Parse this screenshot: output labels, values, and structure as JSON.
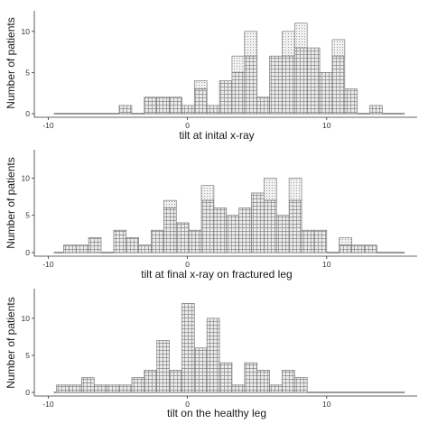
{
  "chart_data": [
    {
      "type": "histogram",
      "xlabel": "tilt at inital x-ray",
      "ylabel": "Number of patients",
      "xlim": [
        -11,
        16.5
      ],
      "ylim": [
        0,
        12.5
      ],
      "bin_width": 0.9,
      "xticks": [
        -10,
        0,
        10
      ],
      "xtick_labels": [
        "-10",
        "0",
        "10"
      ],
      "yticks": [
        0,
        5,
        10
      ],
      "ytick_labels": [
        "0",
        "5",
        "10"
      ],
      "bins": [
        {
          "x": -4.9,
          "count": 1,
          "split": 0
        },
        {
          "x": -3.1,
          "count": 2,
          "split": 0
        },
        {
          "x": -2.2,
          "count": 2,
          "split": 0
        },
        {
          "x": -1.3,
          "count": 2,
          "split": 0
        },
        {
          "x": -0.4,
          "count": 1,
          "split": 0
        },
        {
          "x": 0.5,
          "count": 4,
          "split": 3
        },
        {
          "x": 1.4,
          "count": 1,
          "split": 0
        },
        {
          "x": 2.3,
          "count": 4,
          "split": 0
        },
        {
          "x": 3.2,
          "count": 7,
          "split": 5
        },
        {
          "x": 4.1,
          "count": 10,
          "split": 7
        },
        {
          "x": 5.0,
          "count": 2,
          "split": 0
        },
        {
          "x": 5.9,
          "count": 7,
          "split": 0
        },
        {
          "x": 6.8,
          "count": 10,
          "split": 7
        },
        {
          "x": 7.7,
          "count": 11,
          "split": 8
        },
        {
          "x": 8.6,
          "count": 8,
          "split": 0
        },
        {
          "x": 9.5,
          "count": 5,
          "split": 0
        },
        {
          "x": 10.4,
          "count": 9,
          "split": 7
        },
        {
          "x": 11.3,
          "count": 3,
          "split": 0
        },
        {
          "x": 13.1,
          "count": 1,
          "split": 0
        }
      ]
    },
    {
      "type": "histogram",
      "xlabel": "tilt at final x-ray on fractured leg",
      "ylabel": "Number of patients",
      "xlim": [
        -11,
        16.5
      ],
      "ylim": [
        0,
        13.8
      ],
      "bin_width": 0.9,
      "xticks": [
        -10,
        0,
        10
      ],
      "xtick_labels": [
        "-10",
        "0",
        "10"
      ],
      "yticks": [
        0,
        5,
        10
      ],
      "ytick_labels": [
        "0",
        "5",
        "10"
      ],
      "bins": [
        {
          "x": -8.9,
          "count": 1,
          "split": 0
        },
        {
          "x": -8.0,
          "count": 1,
          "split": 0
        },
        {
          "x": -7.1,
          "count": 2,
          "split": 0
        },
        {
          "x": -5.3,
          "count": 3,
          "split": 0
        },
        {
          "x": -4.4,
          "count": 2,
          "split": 0
        },
        {
          "x": -3.5,
          "count": 1,
          "split": 0
        },
        {
          "x": -2.6,
          "count": 3,
          "split": 0
        },
        {
          "x": -1.7,
          "count": 7,
          "split": 6
        },
        {
          "x": -0.8,
          "count": 4,
          "split": 0
        },
        {
          "x": 0.1,
          "count": 3,
          "split": 0
        },
        {
          "x": 1.0,
          "count": 9,
          "split": 7
        },
        {
          "x": 1.9,
          "count": 6,
          "split": 0
        },
        {
          "x": 2.8,
          "count": 5,
          "split": 0
        },
        {
          "x": 3.7,
          "count": 6,
          "split": 0
        },
        {
          "x": 4.6,
          "count": 8,
          "split": 0
        },
        {
          "x": 5.5,
          "count": 10,
          "split": 7
        },
        {
          "x": 6.4,
          "count": 5,
          "split": 0
        },
        {
          "x": 7.3,
          "count": 10,
          "split": 7
        },
        {
          "x": 8.2,
          "count": 3,
          "split": 0
        },
        {
          "x": 9.1,
          "count": 3,
          "split": 0
        },
        {
          "x": 10.9,
          "count": 2,
          "split": 1
        },
        {
          "x": 11.8,
          "count": 1,
          "split": 0
        },
        {
          "x": 12.7,
          "count": 1,
          "split": 0
        }
      ]
    },
    {
      "type": "histogram",
      "xlabel": "tilt on the healthy leg",
      "ylabel": "Number of patients",
      "xlim": [
        -11,
        16.5
      ],
      "ylim": [
        0,
        14
      ],
      "bin_width": 0.9,
      "xticks": [
        -10,
        0,
        10
      ],
      "xtick_labels": [
        "-10",
        "0",
        "10"
      ],
      "yticks": [
        0,
        5,
        10
      ],
      "ytick_labels": [
        "0",
        "5",
        "10"
      ],
      "bins": [
        {
          "x": -9.4,
          "count": 1,
          "split": 0
        },
        {
          "x": -8.5,
          "count": 1,
          "split": 0
        },
        {
          "x": -7.6,
          "count": 2,
          "split": 0
        },
        {
          "x": -6.7,
          "count": 1,
          "split": 0
        },
        {
          "x": -5.8,
          "count": 1,
          "split": 0
        },
        {
          "x": -4.9,
          "count": 1,
          "split": 0
        },
        {
          "x": -4.0,
          "count": 2,
          "split": 0
        },
        {
          "x": -3.1,
          "count": 3,
          "split": 0
        },
        {
          "x": -2.2,
          "count": 7,
          "split": 0
        },
        {
          "x": -1.3,
          "count": 3,
          "split": 0
        },
        {
          "x": -0.4,
          "count": 12,
          "split": 0
        },
        {
          "x": 0.5,
          "count": 6,
          "split": 0
        },
        {
          "x": 1.4,
          "count": 10,
          "split": 0
        },
        {
          "x": 2.3,
          "count": 4,
          "split": 0
        },
        {
          "x": 3.2,
          "count": 1,
          "split": 0
        },
        {
          "x": 4.1,
          "count": 4,
          "split": 0
        },
        {
          "x": 5.0,
          "count": 3,
          "split": 0
        },
        {
          "x": 5.9,
          "count": 1,
          "split": 0
        },
        {
          "x": 6.8,
          "count": 3,
          "split": 0
        },
        {
          "x": 7.7,
          "count": 2,
          "split": 0
        }
      ]
    }
  ],
  "colors": {
    "bar_fill": "#ececec",
    "bar_stroke": "#7a7a7a",
    "hatch": "#8a8a8a",
    "dots": "#8a8a8a",
    "axis": "#333333",
    "text": "#1a1a1a"
  }
}
